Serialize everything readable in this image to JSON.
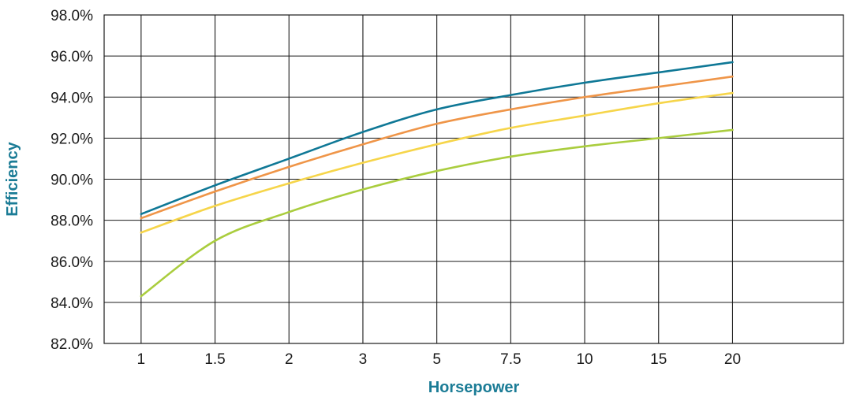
{
  "chart_data": {
    "type": "line",
    "title": "",
    "xlabel": "Horsepower",
    "ylabel": "Efficiency",
    "x_tick_labels": [
      "1",
      "1.5",
      "2",
      "3",
      "5",
      "7.5",
      "10",
      "15",
      "20"
    ],
    "y_tick_labels": [
      "82.0%",
      "84.0%",
      "86.0%",
      "88.0%",
      "90.0%",
      "92.0%",
      "94.0%",
      "96.0%",
      "98.0%"
    ],
    "ylim": [
      82.0,
      98.0
    ],
    "x": [
      1,
      1.5,
      2,
      3,
      5,
      7.5,
      10,
      15,
      20
    ],
    "grid": true,
    "legend": "none",
    "axis_title_color": "#1b7c96",
    "series": [
      {
        "color": "#0f7896",
        "values": [
          88.3,
          89.7,
          91.0,
          92.3,
          93.4,
          94.1,
          94.7,
          95.2,
          95.7
        ]
      },
      {
        "color": "#ef9548",
        "values": [
          88.1,
          89.4,
          90.6,
          91.7,
          92.7,
          93.4,
          94.0,
          94.5,
          95.0
        ]
      },
      {
        "color": "#f6d54a",
        "values": [
          87.4,
          88.7,
          89.8,
          90.8,
          91.7,
          92.5,
          93.1,
          93.7,
          94.2
        ]
      },
      {
        "color": "#aacd3e",
        "values": [
          84.3,
          87.0,
          88.4,
          89.5,
          90.4,
          91.1,
          91.6,
          92.0,
          92.4
        ]
      }
    ]
  }
}
